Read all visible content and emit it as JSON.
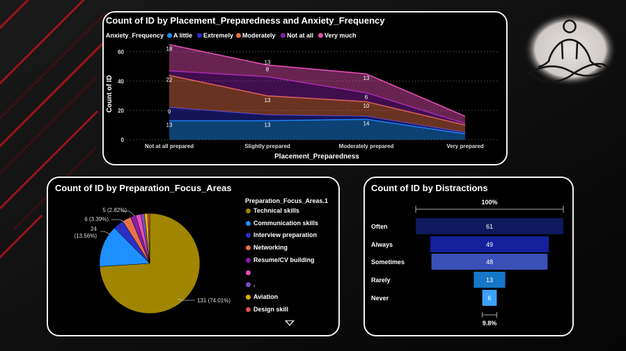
{
  "area_chart": {
    "title": "Count of ID by Placement_Preparedness and Anxiety_Frequency",
    "legend_title": "Anxiety_Frequency",
    "xlabel": "Placement_Preparedness",
    "ylabel": "Count of ID"
  },
  "pie_chart": {
    "title": "Count of ID by Preparation_Focus_Areas",
    "legend_title": "Preparation_Focus_Areas.1",
    "scroll_icon": "triangle-down-icon"
  },
  "funnel_chart": {
    "title": "Count of ID by Distractions",
    "top_percent": "100%",
    "bottom_percent": "9.8%"
  },
  "decoration": {
    "icon": "meditation-icon"
  },
  "chart_data": [
    {
      "type": "area",
      "stacked": true,
      "title": "Count of ID by Placement_Preparedness and Anxiety_Frequency",
      "xlabel": "Placement_Preparedness",
      "ylabel": "Count of ID",
      "categories": [
        "Not at all prepared",
        "Slightly prepared",
        "Moderately prepared",
        "Very prepared"
      ],
      "y_ticks": [
        "0",
        "20",
        "40",
        "60"
      ],
      "ylim": [
        0,
        66
      ],
      "grid": true,
      "legend_position": "top-left",
      "series": [
        {
          "name": "A little",
          "color": "#1e90ff",
          "values": [
            13,
            13,
            14,
            4
          ],
          "labels": [
            "13",
            "13",
            "14",
            ""
          ]
        },
        {
          "name": "Extremely",
          "color": "#2b2ec4",
          "values": [
            9,
            4,
            2,
            1
          ],
          "labels": [
            "9",
            "",
            "",
            ""
          ]
        },
        {
          "name": "Moderately",
          "color": "#e8704a",
          "values": [
            22,
            13,
            10,
            5
          ],
          "labels": [
            "22",
            "13",
            "10",
            ""
          ]
        },
        {
          "name": "Not at all",
          "color": "#8e1ea8",
          "values": [
            3,
            13,
            6,
            1
          ],
          "labels": [
            "",
            "",
            "6",
            ""
          ]
        },
        {
          "name": "Very much",
          "color": "#e44fb4",
          "values": [
            18,
            8,
            13,
            5
          ],
          "labels": [
            "18",
            "8",
            "13",
            ""
          ]
        }
      ],
      "stray_labels": [
        "13"
      ]
    },
    {
      "type": "pie",
      "title": "Count of ID by Preparation_Focus_Areas",
      "legend_title": "Preparation_Focus_Areas.1",
      "slices": [
        {
          "name": "Technical skills",
          "value": 131,
          "color": "#a08600",
          "label": "131 (74.01%)"
        },
        {
          "name": "Communication skills",
          "value": 24,
          "color": "#1e90ff",
          "label": "24",
          "label2": "(13.56%)"
        },
        {
          "name": "Interview preparation",
          "value": 6,
          "color": "#2b2ec4",
          "label": "6 (3.39%)"
        },
        {
          "name": "Networking",
          "value": 5,
          "color": "#e8704a",
          "label": "5 (2.82%)"
        },
        {
          "name": "Resume/CV building",
          "value": 3,
          "color": "#8e1ea8",
          "label": ""
        },
        {
          "name": "",
          "value": 3,
          "color": "#e44fb4",
          "label": ""
        },
        {
          "name": ".",
          "value": 2,
          "color": "#7a4fc9",
          "label": ""
        },
        {
          "name": "Aviation",
          "value": 2,
          "color": "#e0b000",
          "label": ""
        },
        {
          "name": "Design skill",
          "value": 1,
          "color": "#d9534f",
          "label": ""
        }
      ]
    },
    {
      "type": "funnel",
      "title": "Count of ID by Distractions",
      "categories": [
        "Often",
        "Always",
        "Sometimes",
        "Rarely",
        "Never"
      ],
      "values": [
        61,
        49,
        48,
        13,
        6
      ],
      "colors": [
        "#0d1a5e",
        "#14209c",
        "#3a50b8",
        "#1677c9",
        "#3aa0ff"
      ],
      "top_percent": "100%",
      "bottom_percent": "9.8%"
    }
  ]
}
